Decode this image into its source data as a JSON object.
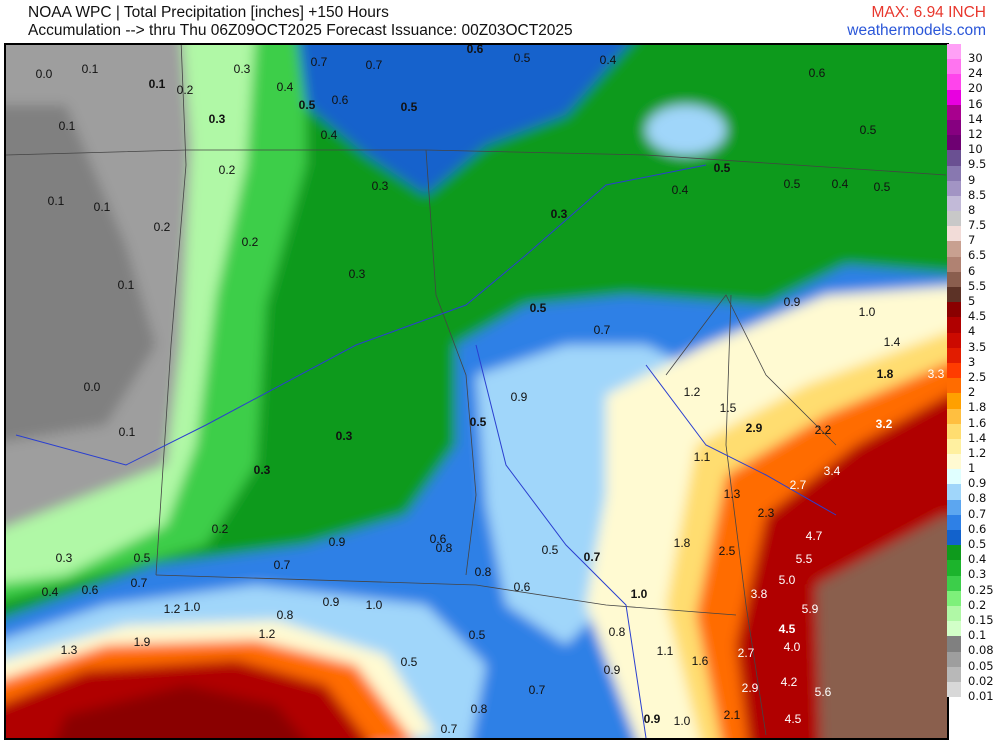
{
  "header": {
    "title": "NOAA WPC | Total Precipitation [inches] +150 Hours",
    "subtitle": "Accumulation --> thru Thu 06Z09OCT2025   Forecast Issuance: 00Z03OCT2025",
    "max": "MAX: 6.94 INCH",
    "site": "weathermodels.com"
  },
  "legend": {
    "levels": [
      "30",
      "24",
      "20",
      "16",
      "14",
      "12",
      "10",
      "9.5",
      "9",
      "8.5",
      "8",
      "7.5",
      "7",
      "6.5",
      "6",
      "5.5",
      "5",
      "4.5",
      "4",
      "3.5",
      "3",
      "2.5",
      "2",
      "1.8",
      "1.6",
      "1.4",
      "1.2",
      "1",
      "0.9",
      "0.8",
      "0.7",
      "0.6",
      "0.5",
      "0.4",
      "0.3",
      "0.25",
      "0.2",
      "0.15",
      "0.1",
      "0.08",
      "0.05",
      "0.02",
      "0.01"
    ],
    "colors": [
      "#ffa0f6",
      "#ff74f0",
      "#ff44ec",
      "#e800e0",
      "#a8008e",
      "#860080",
      "#6e0072",
      "#6a5092",
      "#8878b0",
      "#a294c4",
      "#c2bad8",
      "#c8c8c8",
      "#f2dcd8",
      "#c8a090",
      "#b08272",
      "#8a5e4e",
      "#5c3226",
      "#8a0000",
      "#b00000",
      "#cc0a00",
      "#e21c00",
      "#ff3c00",
      "#ff6c00",
      "#ffa000",
      "#ffbf40",
      "#ffdd70",
      "#fff0a0",
      "#fffad2",
      "#e0ffff",
      "#a0d6fa",
      "#5ca6f0",
      "#2e80e6",
      "#1262cc",
      "#0e9a1c",
      "#1cb42c",
      "#3cce4a",
      "#7ef07a",
      "#b0f8a6",
      "#d2ffc8",
      "#808080",
      "#9e9e9e",
      "#b8b8b8",
      "#d8d8d8"
    ]
  },
  "map": {
    "values": [
      "0.0",
      "0.1",
      "0.1",
      "0.2",
      "0.3",
      "0.4",
      "0.5",
      "0.6",
      "0.7",
      "0.7",
      "0.5",
      "0.6",
      "0.5",
      "0.4",
      "0.6",
      "0.5",
      "0.1",
      "0.3",
      "0.4",
      "0.5",
      "0.5",
      "0.4",
      "0.5",
      "0.2",
      "0.3",
      "0.3",
      "0.4",
      "0.2",
      "0.3",
      "0.5",
      "0.7",
      "0.9",
      "1.0",
      "1.4",
      "1.8",
      "3.3",
      "3.2",
      "2.9",
      "2.2",
      "1.5",
      "1.2",
      "0.9",
      "0.5",
      "0.3",
      "0.3",
      "0.1",
      "0.0",
      "3.4",
      "2.7",
      "4.7",
      "5.5",
      "5.0",
      "3.8",
      "5.9",
      "4.5",
      "4.0",
      "4.2",
      "5.6",
      "4.5",
      "2.9",
      "2.7",
      "2.1",
      "1.6",
      "1.1",
      "1.0",
      "0.9",
      "1.0",
      "0.8",
      "0.7",
      "0.5",
      "0.6",
      "0.5",
      "0.7",
      "0.9",
      "0.5",
      "0.7",
      "0.8",
      "1.0",
      "0.9",
      "1.2",
      "1.0",
      "1.9",
      "1.3",
      "0.7",
      "0.6",
      "0.4",
      "0.3",
      "0.5",
      "0.9",
      "0.7",
      "1.2",
      "0.8",
      "0.1",
      "0.1",
      "0.2",
      "0.1",
      "1.1",
      "1.3",
      "2.3",
      "2.5",
      "1.8",
      "0.6",
      "0.8",
      "0.8",
      "0.2"
    ]
  }
}
